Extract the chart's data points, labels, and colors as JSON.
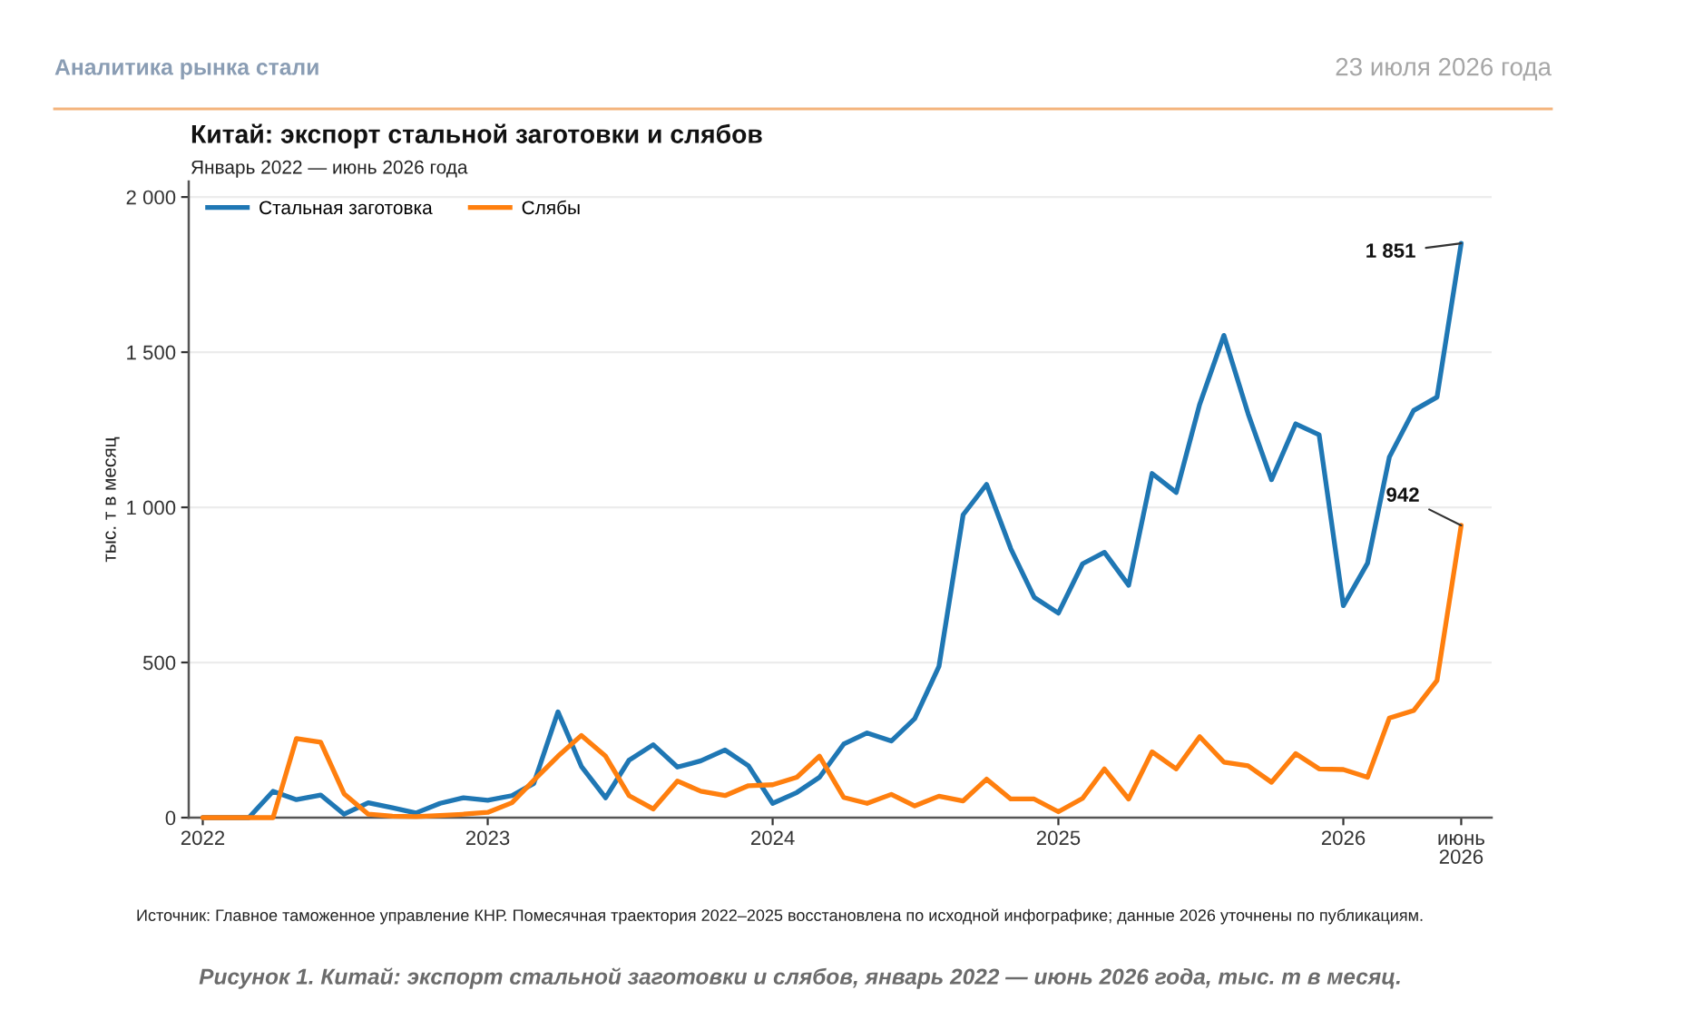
{
  "chart_data": {
    "type": "line",
    "title": "Китай: экспорт стальной заготовки и слябов",
    "subtitle": "Январь 2022 — июнь 2026 года",
    "ylabel": "тыс. т в месяц",
    "x": [
      "2022-01",
      "2022-02",
      "2022-03",
      "2022-04",
      "2022-05",
      "2022-06",
      "2022-07",
      "2022-08",
      "2022-09",
      "2022-10",
      "2022-11",
      "2022-12",
      "2023-01",
      "2023-02",
      "2023-03",
      "2023-04",
      "2023-05",
      "2023-06",
      "2023-07",
      "2023-08",
      "2023-09",
      "2023-10",
      "2023-11",
      "2023-12",
      "2024-01",
      "2024-02",
      "2024-03",
      "2024-04",
      "2024-05",
      "2024-06",
      "2024-07",
      "2024-08",
      "2024-09",
      "2024-10",
      "2024-11",
      "2024-12",
      "2025-01",
      "2025-02",
      "2025-03",
      "2025-04",
      "2025-05",
      "2025-06",
      "2025-07",
      "2025-08",
      "2025-09",
      "2025-10",
      "2025-11",
      "2025-12",
      "2026-01",
      "2026-02",
      "2026-03",
      "2026-04",
      "2026-05",
      "2026-06"
    ],
    "series": [
      {
        "name": "Стальная заготовка",
        "color": "#1f77b4",
        "values": [
          0,
          0,
          0,
          85,
          58,
          73,
          11,
          48,
          32,
          15,
          46,
          64,
          56,
          71,
          110,
          341,
          165,
          64,
          185,
          235,
          163,
          183,
          218,
          167,
          46,
          81,
          130,
          237,
          273,
          247,
          319,
          487,
          976,
          1074,
          867,
          710,
          659,
          818,
          855,
          749,
          1109,
          1048,
          1332,
          1554,
          1302,
          1089,
          1269,
          1234,
          683,
          820,
          1162,
          1312,
          1355,
          1851
        ]
      },
      {
        "name": "Слябы",
        "color": "#ff7f0e",
        "values": [
          0,
          0,
          0,
          0,
          255,
          243,
          77,
          11,
          5,
          3,
          7,
          11,
          17,
          48,
          120,
          198,
          265,
          198,
          71,
          28,
          118,
          85,
          71,
          103,
          106,
          130,
          198,
          65,
          46,
          75,
          38,
          69,
          54,
          124,
          60,
          60,
          19,
          62,
          157,
          60,
          212,
          157,
          261,
          179,
          167,
          114,
          206,
          157,
          155,
          130,
          321,
          345,
          442,
          942
        ]
      }
    ],
    "xlim": [
      "2021-12-14",
      "2026-07-10"
    ],
    "xticks": [
      {
        "value": "2022-01",
        "label": "2022"
      },
      {
        "value": "2023-01",
        "label": "2023"
      },
      {
        "value": "2024-01",
        "label": "2024"
      },
      {
        "value": "2025-01",
        "label": "2025"
      },
      {
        "value": "2026-01",
        "label": "2026"
      },
      {
        "value": "2026-06",
        "label": "июнь\n2026"
      }
    ],
    "ylim": [
      0,
      2050
    ],
    "yticks": [
      0,
      500,
      {
        "value": 1000,
        "label": "1 000"
      },
      {
        "value": 1500,
        "label": "1 500"
      },
      {
        "value": 2000,
        "label": "2 000"
      }
    ],
    "grid": "y",
    "legend": "top left",
    "line_style": "solid",
    "annotations": [
      "Аналитика рынка стали",
      "23 июля 2026 года",
      "Источник: Главное таможенное управление КНР. Помесячная траектория 2022–2025 восстановлена по исходной инфографике; данные 2026 уточнены по публикациям.",
      "Рисунок 1. Китай: экспорт стальной заготовки и слябов, январь 2022 — июнь 2026 года, тыс. т в месяц.",
      {
        "text": "1 851",
        "x": "2026-06",
        "y": 1851
      },
      {
        "text": "942",
        "x": "2026-06",
        "y": 942
      }
    ]
  }
}
